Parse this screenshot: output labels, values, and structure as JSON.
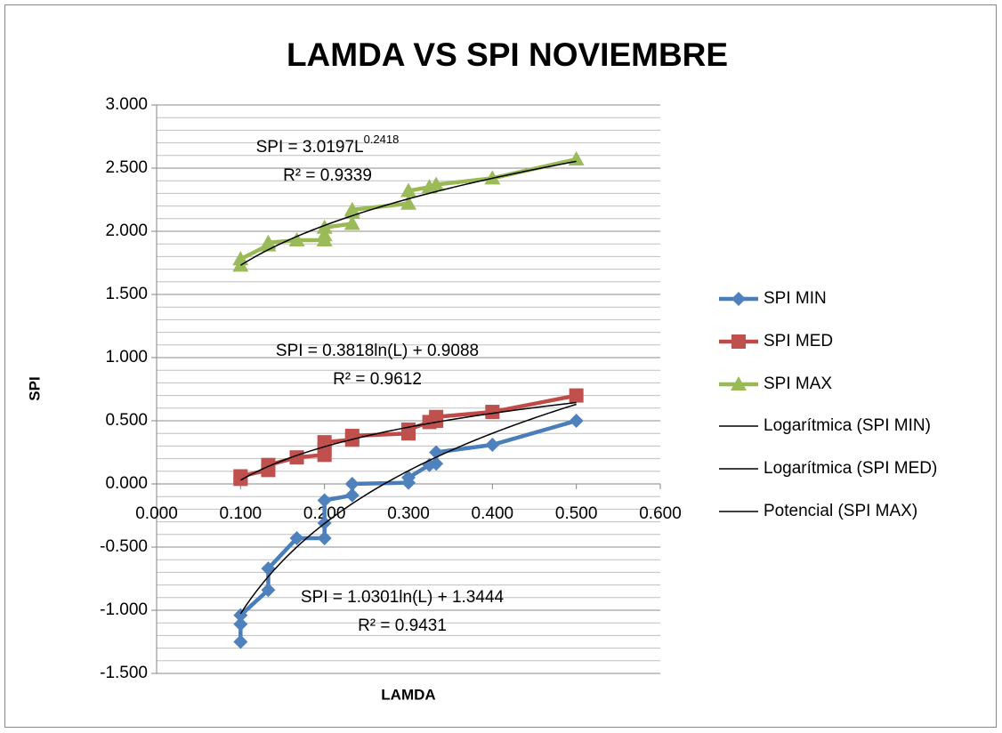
{
  "chart_data": {
    "type": "scatter",
    "title": "LAMDA VS SPI NOVIEMBRE",
    "x_label": "LAMDA",
    "y_label": "SPI",
    "xlim": [
      0,
      0.6
    ],
    "ylim": [
      -1.5,
      3
    ],
    "xticks": [
      {
        "value": 0,
        "label": "0.000"
      },
      {
        "value": 0.1,
        "label": "0.100"
      },
      {
        "value": 0.2,
        "label": "0.200"
      },
      {
        "value": 0.3,
        "label": "0.300"
      },
      {
        "value": 0.4,
        "label": "0.400"
      },
      {
        "value": 0.5,
        "label": "0.500"
      },
      {
        "value": 0.6,
        "label": "0.600"
      }
    ],
    "yticks": [
      {
        "value": -1.5,
        "label": "-1.500"
      },
      {
        "value": -1,
        "label": "-1.000"
      },
      {
        "value": -0.5,
        "label": "-0.500"
      },
      {
        "value": 0,
        "label": "0.000"
      },
      {
        "value": 0.5,
        "label": "0.500"
      },
      {
        "value": 1,
        "label": "1.000"
      },
      {
        "value": 1.5,
        "label": "1.500"
      },
      {
        "value": 2,
        "label": "2.000"
      },
      {
        "value": 2.5,
        "label": "2.500"
      },
      {
        "value": 3,
        "label": "3.000"
      }
    ],
    "grid": true,
    "minor_grid_divisions": 5,
    "legend": "right",
    "series": [
      {
        "name": "SPI MIN",
        "color": "#4f81bd",
        "marker": "diamond",
        "x": [
          0.1,
          0.1,
          0.1,
          0.133,
          0.133,
          0.167,
          0.2,
          0.2,
          0.2,
          0.233,
          0.233,
          0.3,
          0.3,
          0.325,
          0.333,
          0.333,
          0.4,
          0.5
        ],
        "values": [
          -1.25,
          -1.11,
          -1.04,
          -0.84,
          -0.67,
          -0.43,
          -0.43,
          -0.31,
          -0.13,
          -0.09,
          0.0,
          0.01,
          0.05,
          0.15,
          0.16,
          0.25,
          0.31,
          0.5
        ]
      },
      {
        "name": "SPI MED",
        "color": "#c0504d",
        "marker": "square",
        "x": [
          0.1,
          0.1,
          0.133,
          0.133,
          0.167,
          0.2,
          0.2,
          0.2,
          0.233,
          0.233,
          0.3,
          0.3,
          0.325,
          0.333,
          0.333,
          0.4,
          0.5
        ],
        "values": [
          0.04,
          0.06,
          0.11,
          0.15,
          0.21,
          0.23,
          0.27,
          0.33,
          0.35,
          0.38,
          0.4,
          0.43,
          0.49,
          0.5,
          0.53,
          0.57,
          0.7
        ]
      },
      {
        "name": "SPI MAX",
        "color": "#9bbb59",
        "marker": "triangle",
        "x": [
          0.1,
          0.1,
          0.133,
          0.133,
          0.167,
          0.2,
          0.2,
          0.2,
          0.233,
          0.233,
          0.233,
          0.3,
          0.3,
          0.325,
          0.333,
          0.4,
          0.5
        ],
        "values": [
          1.73,
          1.78,
          1.89,
          1.91,
          1.93,
          1.93,
          1.97,
          2.03,
          2.06,
          2.15,
          2.17,
          2.22,
          2.32,
          2.35,
          2.37,
          2.42,
          2.57
        ]
      }
    ],
    "trendlines": [
      {
        "name": "Logarítmica (SPI MIN)",
        "kind": "log",
        "a": 1.0301,
        "b": 1.3444,
        "equation": "SPI = 1.0301ln(L) + 1.3444",
        "r2": "R² = 0.9431"
      },
      {
        "name": "Logarítmica (SPI MED)",
        "kind": "log",
        "a": 0.3818,
        "b": 0.9088,
        "equation": "SPI = 0.3818ln(L) + 0.9088",
        "r2": "R² = 0.9612"
      },
      {
        "name": "Potencial (SPI MAX)",
        "kind": "power",
        "a": 3.0197,
        "b": 0.2418,
        "equation": "SPI = 3.0197L",
        "exponent": "0.2418",
        "r2": "R² = 0.9339"
      }
    ]
  }
}
